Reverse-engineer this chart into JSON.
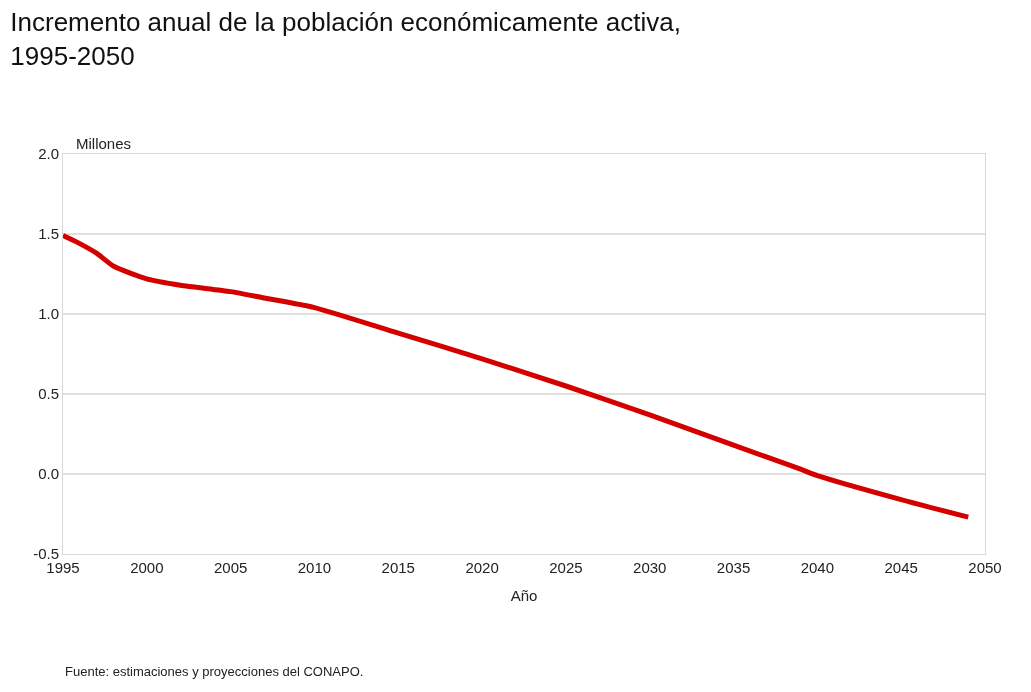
{
  "chart_data": {
    "type": "line",
    "title": "Incremento anual de la población económicamente activa,\n1995-2050",
    "ylabel": "Millones",
    "xlabel": "Año",
    "x": [
      1995,
      1996,
      1997,
      1998,
      2000,
      2002,
      2005,
      2007,
      2010,
      2015,
      2020,
      2025,
      2030,
      2035,
      2039,
      2040,
      2045,
      2049
    ],
    "series": [
      {
        "color": "#d40000",
        "values": [
          1.49,
          1.44,
          1.38,
          1.3,
          1.22,
          1.18,
          1.14,
          1.1,
          1.04,
          0.88,
          0.72,
          0.55,
          0.37,
          0.18,
          0.03,
          -0.01,
          -0.16,
          -0.27
        ]
      }
    ],
    "xlim": [
      1995,
      2050
    ],
    "xticks": [
      1995,
      2000,
      2005,
      2010,
      2015,
      2020,
      2025,
      2030,
      2035,
      2040,
      2045,
      2050
    ],
    "ylim": [
      -0.5,
      2.0
    ],
    "yticks": [
      {
        "value": -0.5,
        "label": "-0.5"
      },
      {
        "value": 0,
        "label": "0.0"
      },
      {
        "value": 0.5,
        "label": "0.5"
      },
      {
        "value": 1,
        "label": "1.0"
      },
      {
        "value": 1.5,
        "label": "1.5"
      },
      {
        "value": 2,
        "label": "2.0"
      }
    ],
    "grid": "y",
    "marker": "none",
    "line_style": "solid",
    "annotations": [
      "Fuente: estimaciones y proyecciones del CONAPO."
    ]
  }
}
